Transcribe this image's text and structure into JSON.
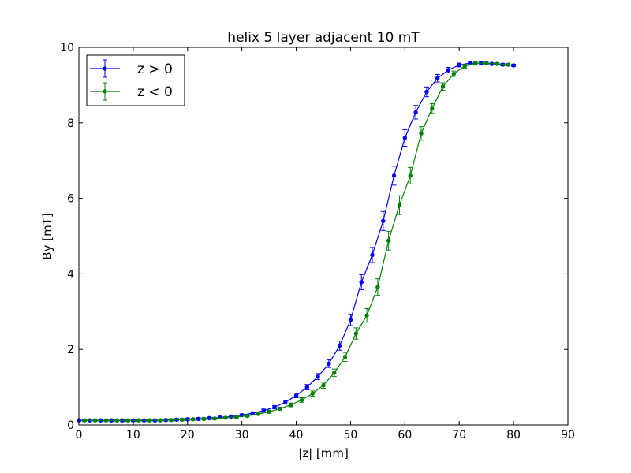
{
  "chart_data": {
    "type": "line",
    "title": "helix 5 layer adjacent 10 mT",
    "xlabel": "|z| [mm]",
    "ylabel": "By [mT]",
    "xlim": [
      0,
      90
    ],
    "ylim": [
      0,
      10
    ],
    "xticks": [
      "0",
      "10",
      "20",
      "30",
      "40",
      "50",
      "60",
      "70",
      "80",
      "90"
    ],
    "yticks": [
      "0",
      "2",
      "4",
      "6",
      "8",
      "10"
    ],
    "grid": false,
    "legend_position": "top-left",
    "error_bars": true,
    "series": [
      {
        "name": "z > 0",
        "color": "#0000ff",
        "x": [
          0,
          2,
          4,
          6,
          8,
          10,
          12,
          14,
          16,
          18,
          20,
          22,
          24,
          26,
          28,
          30,
          32,
          34,
          36,
          38,
          40,
          42,
          44,
          46,
          48,
          50,
          52,
          54,
          56,
          58,
          60,
          62,
          64,
          66,
          68,
          70,
          72,
          74,
          76,
          78,
          80
        ],
        "y": [
          0.12,
          0.12,
          0.12,
          0.12,
          0.12,
          0.12,
          0.12,
          0.12,
          0.13,
          0.14,
          0.15,
          0.16,
          0.18,
          0.2,
          0.22,
          0.26,
          0.31,
          0.38,
          0.47,
          0.6,
          0.78,
          1.0,
          1.28,
          1.62,
          2.1,
          2.78,
          3.78,
          4.5,
          5.4,
          6.6,
          7.6,
          8.28,
          8.82,
          9.18,
          9.4,
          9.53,
          9.58,
          9.58,
          9.56,
          9.54,
          9.52
        ],
        "yerr": [
          0.03,
          0.03,
          0.03,
          0.03,
          0.03,
          0.03,
          0.03,
          0.03,
          0.03,
          0.03,
          0.03,
          0.03,
          0.03,
          0.03,
          0.03,
          0.03,
          0.03,
          0.04,
          0.04,
          0.05,
          0.06,
          0.07,
          0.08,
          0.1,
          0.12,
          0.15,
          0.2,
          0.2,
          0.25,
          0.25,
          0.22,
          0.18,
          0.13,
          0.1,
          0.07,
          0.05,
          0.04,
          0.04,
          0.03,
          0.03,
          0.03
        ]
      },
      {
        "name": "z < 0",
        "color": "#008000",
        "x": [
          1,
          3,
          5,
          7,
          9,
          11,
          13,
          15,
          17,
          19,
          21,
          23,
          25,
          27,
          29,
          31,
          33,
          35,
          37,
          39,
          41,
          43,
          45,
          47,
          49,
          51,
          53,
          55,
          57,
          59,
          61,
          63,
          65,
          67,
          69,
          71,
          73,
          75,
          77,
          79
        ],
        "y": [
          0.12,
          0.12,
          0.12,
          0.12,
          0.12,
          0.12,
          0.12,
          0.12,
          0.13,
          0.14,
          0.15,
          0.16,
          0.17,
          0.19,
          0.21,
          0.24,
          0.29,
          0.35,
          0.43,
          0.53,
          0.66,
          0.83,
          1.05,
          1.38,
          1.8,
          2.42,
          2.9,
          3.65,
          4.88,
          5.82,
          6.6,
          7.72,
          8.38,
          8.96,
          9.3,
          9.5,
          9.58,
          9.58,
          9.56,
          9.54
        ],
        "yerr": [
          0.03,
          0.03,
          0.03,
          0.03,
          0.03,
          0.03,
          0.03,
          0.03,
          0.03,
          0.03,
          0.03,
          0.03,
          0.03,
          0.03,
          0.03,
          0.03,
          0.03,
          0.04,
          0.04,
          0.05,
          0.06,
          0.07,
          0.08,
          0.1,
          0.12,
          0.15,
          0.18,
          0.22,
          0.25,
          0.25,
          0.22,
          0.18,
          0.13,
          0.1,
          0.07,
          0.05,
          0.04,
          0.04,
          0.03,
          0.03
        ]
      }
    ]
  }
}
